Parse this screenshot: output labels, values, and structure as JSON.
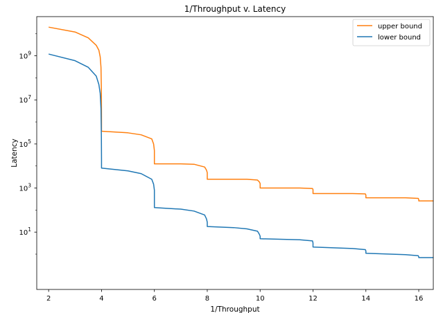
{
  "chart_data": {
    "type": "line",
    "title": "1/Throughput v. Latency",
    "xlabel": "1/Throughput",
    "ylabel": "Latency",
    "xlim": [
      1.55,
      16.55
    ],
    "ylim": [
      0.025,
      60000000000
    ],
    "yscale": "log",
    "grid": false,
    "legend_position": "top-right",
    "x_ticks": [
      2,
      4,
      6,
      8,
      10,
      12,
      14,
      16
    ],
    "x_tick_labels": [
      "2",
      "4",
      "6",
      "8",
      "10",
      "12",
      "14",
      "16"
    ],
    "y_ticks": [
      10,
      1000,
      100000,
      10000000,
      1000000000
    ],
    "y_tick_labels": [
      {
        "base": "10",
        "exp": "1"
      },
      {
        "base": "10",
        "exp": "3"
      },
      {
        "base": "10",
        "exp": "5"
      },
      {
        "base": "10",
        "exp": "7"
      },
      {
        "base": "10",
        "exp": "9"
      }
    ],
    "series": [
      {
        "name": "upper bound",
        "color": "#ff7f0e",
        "x": [
          2.0,
          3.0,
          3.5,
          3.8,
          3.9,
          3.95,
          3.98,
          3.995,
          4.0,
          4.0,
          5.0,
          5.5,
          5.9,
          5.97,
          6.0,
          6.0,
          7.0,
          7.5,
          7.9,
          7.97,
          8.0,
          8.0,
          9.0,
          9.5,
          9.9,
          9.97,
          10.0,
          10.0,
          11.5,
          11.98,
          12.0,
          12.0,
          13.5,
          13.98,
          14.0,
          14.0,
          15.5,
          15.98,
          16.0,
          16.0,
          16.55
        ],
        "y": [
          20000000000,
          12000000000,
          6500000000,
          3000000000,
          1800000000,
          900000000,
          300000000,
          30000000,
          1000000,
          380000,
          320000,
          260000,
          170000,
          100000,
          50000,
          12500,
          12500,
          12000,
          9000,
          6500,
          5000,
          2500,
          2500,
          2500,
          2300,
          1900,
          1600,
          1000,
          1000,
          950,
          850,
          560,
          560,
          540,
          480,
          360,
          360,
          340,
          300,
          260,
          260
        ]
      },
      {
        "name": "lower bound",
        "color": "#1f77b4",
        "x": [
          2.0,
          3.0,
          3.5,
          3.8,
          3.9,
          3.95,
          3.98,
          3.995,
          4.0,
          4.0,
          5.0,
          5.5,
          5.9,
          5.97,
          6.0,
          6.0,
          7.0,
          7.5,
          7.9,
          7.97,
          8.0,
          8.0,
          9.0,
          9.5,
          9.9,
          9.97,
          10.0,
          10.0,
          11.5,
          11.98,
          12.0,
          12.0,
          13.5,
          13.98,
          14.0,
          14.0,
          15.5,
          15.98,
          16.0,
          16.0,
          16.55
        ],
        "y": [
          1200000000,
          600000000,
          300000000,
          120000000,
          50000000,
          20000000,
          4000000,
          200000,
          20000,
          8000,
          6000,
          4500,
          2500,
          1500,
          800,
          130,
          110,
          90,
          60,
          40,
          28,
          18,
          16,
          14,
          11,
          8,
          6.5,
          5,
          4.5,
          4.0,
          3.2,
          2.1,
          1.8,
          1.6,
          1.4,
          1.1,
          0.95,
          0.85,
          0.75,
          0.7,
          0.7
        ]
      }
    ]
  }
}
